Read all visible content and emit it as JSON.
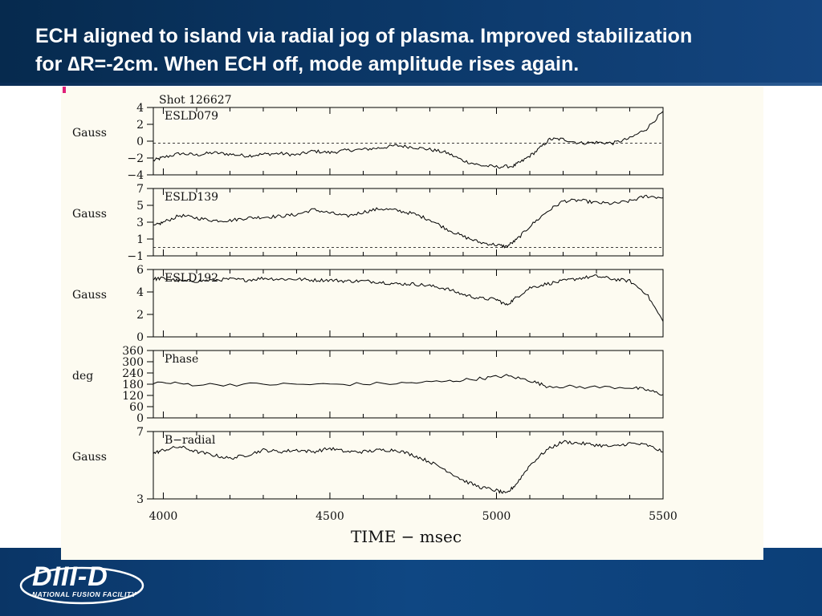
{
  "slide": {
    "title_line1": "ECH aligned to island via radial jog of plasma. Improved stabilization",
    "title_line2": "for ∆R=-2cm. When ECH off, mode amplitude rises again."
  },
  "logo": {
    "name": "DIII-D",
    "subtitle": "NATIONAL FUSION FACILITY"
  },
  "colors": {
    "header": "#0d3b6e",
    "footer": "#0f4783",
    "panel": "#fdfbf1",
    "trace": "#000000"
  },
  "chart_data": {
    "type": "line",
    "shot_label": "Shot 126627",
    "xlabel": "TIME − msec",
    "x_ticks": [
      "4000",
      "4500",
      "5000",
      "5500"
    ],
    "xlim": [
      3970,
      5500
    ],
    "subplots": [
      {
        "name": "ESLD079",
        "ylabel": "Gauss",
        "ylim": [
          -4,
          4.5
        ],
        "y_ticks": [
          "4",
          "2",
          "0",
          "−2",
          "−4"
        ],
        "dashed_zero": 0,
        "points": [
          [
            3970,
            -2.2
          ],
          [
            4000,
            -1.8
          ],
          [
            4050,
            -1.3
          ],
          [
            4100,
            -1.5
          ],
          [
            4150,
            -1.2
          ],
          [
            4200,
            -1.4
          ],
          [
            4250,
            -1.6
          ],
          [
            4300,
            -1.4
          ],
          [
            4350,
            -1.3
          ],
          [
            4400,
            -1.5
          ],
          [
            4450,
            -1.0
          ],
          [
            4500,
            -1.2
          ],
          [
            4550,
            -0.9
          ],
          [
            4600,
            -0.8
          ],
          [
            4650,
            -0.6
          ],
          [
            4700,
            -0.3
          ],
          [
            4750,
            -0.5
          ],
          [
            4800,
            -0.8
          ],
          [
            4850,
            -1.2
          ],
          [
            4900,
            -2.2
          ],
          [
            4950,
            -2.8
          ],
          [
            5000,
            -3.0
          ],
          [
            5050,
            -2.9
          ],
          [
            5080,
            -2.2
          ],
          [
            5120,
            -1.0
          ],
          [
            5160,
            0.5
          ],
          [
            5200,
            0.5
          ],
          [
            5250,
            0.0
          ],
          [
            5300,
            0.1
          ],
          [
            5350,
            0.0
          ],
          [
            5400,
            0.6
          ],
          [
            5450,
            1.8
          ],
          [
            5500,
            4.0
          ]
        ]
      },
      {
        "name": "ESLD139",
        "ylabel": "Gauss",
        "ylim": [
          -1,
          7
        ],
        "y_ticks": [
          "7",
          "5",
          "3",
          "1",
          "−1"
        ],
        "dashed_zero": 0,
        "points": [
          [
            3970,
            2.5
          ],
          [
            4000,
            3.0
          ],
          [
            4050,
            3.8
          ],
          [
            4100,
            3.5
          ],
          [
            4150,
            3.2
          ],
          [
            4200,
            3.2
          ],
          [
            4250,
            3.5
          ],
          [
            4300,
            3.6
          ],
          [
            4350,
            3.7
          ],
          [
            4400,
            3.9
          ],
          [
            4450,
            4.5
          ],
          [
            4500,
            4.1
          ],
          [
            4550,
            3.7
          ],
          [
            4600,
            4.2
          ],
          [
            4650,
            4.6
          ],
          [
            4700,
            4.4
          ],
          [
            4750,
            4.0
          ],
          [
            4800,
            3.3
          ],
          [
            4850,
            2.2
          ],
          [
            4900,
            1.3
          ],
          [
            4950,
            0.6
          ],
          [
            5000,
            0.3
          ],
          [
            5030,
            0.1
          ],
          [
            5060,
            0.9
          ],
          [
            5100,
            2.5
          ],
          [
            5150,
            4.2
          ],
          [
            5200,
            5.5
          ],
          [
            5250,
            5.6
          ],
          [
            5300,
            5.3
          ],
          [
            5350,
            5.2
          ],
          [
            5400,
            5.5
          ],
          [
            5450,
            6.1
          ],
          [
            5500,
            5.9
          ]
        ]
      },
      {
        "name": "ESLD192",
        "ylabel": "Gauss",
        "ylim": [
          0,
          7
        ],
        "y_ticks": [
          "6",
          "4",
          "2",
          "0"
        ],
        "dashed_zero": null,
        "points": [
          [
            3970,
            6.0
          ],
          [
            4000,
            6.1
          ],
          [
            4050,
            5.8
          ],
          [
            4100,
            5.8
          ],
          [
            4150,
            5.9
          ],
          [
            4200,
            6.0
          ],
          [
            4250,
            5.9
          ],
          [
            4300,
            6.1
          ],
          [
            4350,
            6.0
          ],
          [
            4400,
            6.0
          ],
          [
            4450,
            5.9
          ],
          [
            4500,
            5.9
          ],
          [
            4550,
            5.8
          ],
          [
            4600,
            5.8
          ],
          [
            4650,
            5.7
          ],
          [
            4700,
            5.5
          ],
          [
            4750,
            5.5
          ],
          [
            4800,
            5.3
          ],
          [
            4850,
            5.0
          ],
          [
            4900,
            4.4
          ],
          [
            4950,
            4.0
          ],
          [
            5000,
            3.9
          ],
          [
            5030,
            3.3
          ],
          [
            5060,
            4.1
          ],
          [
            5100,
            5.1
          ],
          [
            5150,
            5.5
          ],
          [
            5200,
            5.8
          ],
          [
            5250,
            6.1
          ],
          [
            5300,
            6.3
          ],
          [
            5350,
            6.0
          ],
          [
            5400,
            5.8
          ],
          [
            5450,
            4.5
          ],
          [
            5500,
            1.6
          ]
        ]
      },
      {
        "name": "Phase",
        "ylabel": "deg",
        "ylim": [
          0,
          360
        ],
        "y_ticks": [
          "360",
          "300",
          "240",
          "180",
          "120",
          "60",
          "0"
        ],
        "dashed_zero": null,
        "points": [
          [
            3970,
            190
          ],
          [
            4100,
            178
          ],
          [
            4300,
            180
          ],
          [
            4500,
            179
          ],
          [
            4700,
            184
          ],
          [
            4850,
            195
          ],
          [
            4950,
            210
          ],
          [
            5030,
            225
          ],
          [
            5100,
            200
          ],
          [
            5150,
            170
          ],
          [
            5250,
            165
          ],
          [
            5400,
            163
          ],
          [
            5450,
            150
          ],
          [
            5500,
            125
          ]
        ]
      },
      {
        "name": "B−radial",
        "ylabel": "Gauss",
        "ylim": [
          3,
          7
        ],
        "y_ticks": [
          "7",
          "3"
        ],
        "dashed_zero": null,
        "points": [
          [
            3970,
            5.7
          ],
          [
            4000,
            5.9
          ],
          [
            4050,
            6.1
          ],
          [
            4100,
            5.8
          ],
          [
            4150,
            5.6
          ],
          [
            4200,
            5.4
          ],
          [
            4250,
            5.6
          ],
          [
            4300,
            5.9
          ],
          [
            4350,
            5.8
          ],
          [
            4400,
            5.9
          ],
          [
            4450,
            5.8
          ],
          [
            4500,
            6.0
          ],
          [
            4550,
            5.8
          ],
          [
            4600,
            5.8
          ],
          [
            4650,
            5.9
          ],
          [
            4700,
            5.9
          ],
          [
            4750,
            5.6
          ],
          [
            4800,
            5.2
          ],
          [
            4850,
            4.7
          ],
          [
            4900,
            4.1
          ],
          [
            4950,
            3.7
          ],
          [
            5000,
            3.5
          ],
          [
            5030,
            3.3
          ],
          [
            5060,
            3.9
          ],
          [
            5100,
            5.0
          ],
          [
            5150,
            5.9
          ],
          [
            5200,
            6.4
          ],
          [
            5250,
            6.3
          ],
          [
            5300,
            6.2
          ],
          [
            5350,
            6.1
          ],
          [
            5400,
            6.3
          ],
          [
            5450,
            6.2
          ],
          [
            5500,
            5.8
          ]
        ]
      }
    ]
  }
}
